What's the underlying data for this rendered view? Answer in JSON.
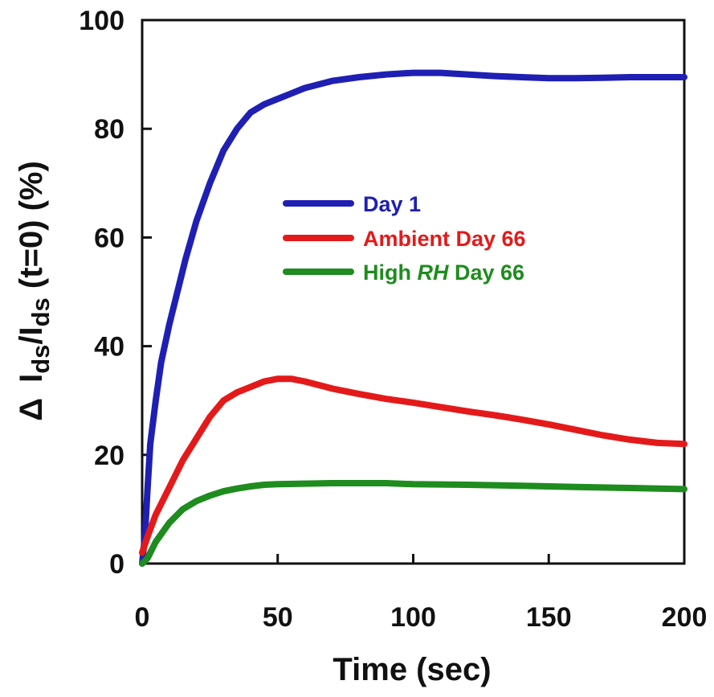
{
  "chart_data": {
    "type": "line",
    "xlabel": "Time (sec)",
    "ylabel": "Δ Ids/Ids (t=0) (%)",
    "ylabel_parts": {
      "delta": "Δ",
      "i1": "I",
      "sub1": "ds",
      "slash": "/I",
      "sub2": "ds",
      "rest": " (t=0) (%)"
    },
    "xlim": [
      0,
      200
    ],
    "ylim": [
      0,
      100
    ],
    "x_ticks": [
      0,
      50,
      100,
      150,
      200
    ],
    "y_ticks": [
      0,
      20,
      40,
      60,
      80,
      100
    ],
    "x_tick_labels": [
      "0",
      "50",
      "100",
      "150",
      "200"
    ],
    "y_tick_labels": [
      "0",
      "20",
      "40",
      "60",
      "80",
      "100"
    ],
    "grid": false,
    "legend_position": "center",
    "series": [
      {
        "name": "Day 1",
        "color": "#1f1fb4",
        "x": [
          0,
          1,
          2,
          3,
          5,
          7,
          10,
          13,
          16,
          20,
          25,
          30,
          35,
          40,
          45,
          50,
          55,
          60,
          70,
          80,
          90,
          100,
          110,
          120,
          130,
          140,
          150,
          160,
          170,
          180,
          190,
          200
        ],
        "y": [
          0,
          5,
          14,
          22,
          30,
          37,
          44,
          50,
          56,
          63,
          70,
          76,
          80,
          83,
          84.5,
          85.5,
          86.5,
          87.5,
          88.8,
          89.5,
          90,
          90.3,
          90.3,
          90,
          89.7,
          89.5,
          89.3,
          89.3,
          89.4,
          89.5,
          89.5,
          89.5
        ]
      },
      {
        "name": "Ambient Day 66",
        "color": "#e41a1a",
        "x": [
          0,
          2,
          5,
          10,
          15,
          20,
          25,
          30,
          35,
          40,
          45,
          50,
          55,
          60,
          70,
          80,
          90,
          100,
          110,
          120,
          130,
          140,
          150,
          160,
          170,
          180,
          190,
          200
        ],
        "y": [
          2,
          5,
          9,
          14,
          19,
          23,
          27,
          30,
          31.5,
          32.5,
          33.5,
          34,
          34,
          33.5,
          32.2,
          31.2,
          30.3,
          29.6,
          28.8,
          28,
          27.3,
          26.5,
          25.6,
          24.6,
          23.6,
          22.8,
          22.2,
          22
        ]
      },
      {
        "name": "High RH Day 66",
        "name_parts": {
          "pre": "High ",
          "italic": "RH",
          "post": " Day 66"
        },
        "color": "#1e8c1e",
        "x": [
          0,
          2,
          5,
          10,
          15,
          20,
          25,
          30,
          35,
          40,
          45,
          50,
          60,
          70,
          80,
          90,
          100,
          120,
          140,
          160,
          180,
          200
        ],
        "y": [
          0,
          1,
          4,
          7.5,
          10,
          11.5,
          12.5,
          13.3,
          13.8,
          14.2,
          14.5,
          14.6,
          14.7,
          14.8,
          14.8,
          14.8,
          14.6,
          14.5,
          14.3,
          14.1,
          13.9,
          13.7
        ]
      }
    ]
  }
}
